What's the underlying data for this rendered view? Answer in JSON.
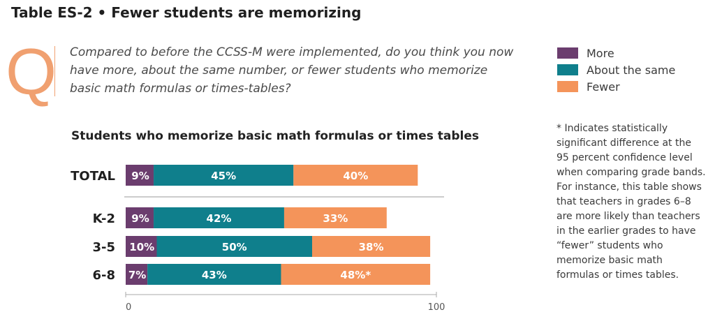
{
  "header": {
    "title": "Table ES-2 • Fewer students are memorizing",
    "q_letter": "Q",
    "question": "Compared to before the CCSS-M were implemented, do you think you now have more, about the same number, or fewer students who memorize basic math formulas or times-tables?"
  },
  "legend": [
    {
      "label": "More",
      "color": "#6b3d6e"
    },
    {
      "label": "About the same",
      "color": "#0f7f8c"
    },
    {
      "label": "Fewer",
      "color": "#f4945a"
    }
  ],
  "note": "* Indicates statistically significant difference at the 95 percent confidence level when comparing grade bands. For instance, this table shows that teachers in grades 6–8 are more likely than teachers in the earlier grades to have “fewer” students who memorize basic math formulas or times tables.",
  "chart_data": {
    "type": "bar",
    "orientation": "horizontal",
    "stacked": true,
    "title": "Students who memorize basic math formulas or times tables",
    "categories": [
      "TOTAL",
      "K-2",
      "3-5",
      "6-8"
    ],
    "series": [
      {
        "name": "More",
        "color": "#6b3d6e",
        "values": [
          9,
          9,
          10,
          7
        ],
        "labels": [
          "9%",
          "9%",
          "10%",
          "7%"
        ]
      },
      {
        "name": "About the same",
        "color": "#0f7f8c",
        "values": [
          45,
          42,
          50,
          43
        ],
        "labels": [
          "45%",
          "42%",
          "50%",
          "43%"
        ]
      },
      {
        "name": "Fewer",
        "color": "#f4945a",
        "values": [
          40,
          33,
          38,
          48
        ],
        "labels": [
          "40%",
          "33%",
          "38%",
          "48%*"
        ]
      }
    ],
    "xlim": [
      0,
      100
    ],
    "x_ticks": [
      "0",
      "100"
    ],
    "grid": false,
    "legend_position": "top-right"
  }
}
